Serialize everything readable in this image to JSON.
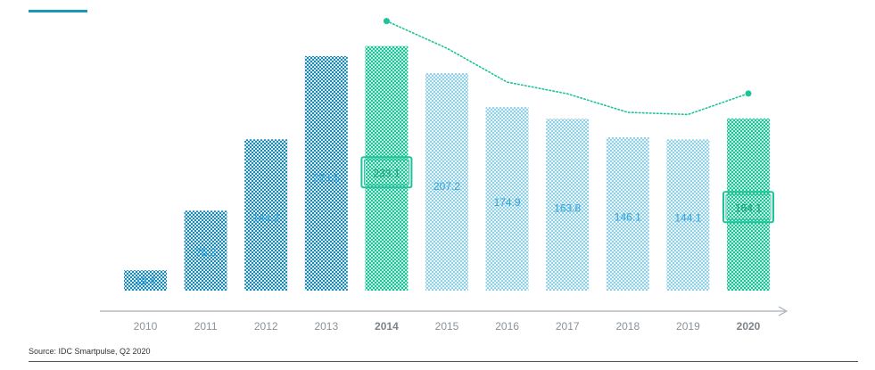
{
  "source_note": "Source: IDC Smartpulse, Q2 2020",
  "colors": {
    "dark_blue": "#1f88b5",
    "light_blue": "#7cc8e2",
    "teal": "#1ec39a",
    "axis": "#a8aeb4",
    "value_text": "#2ea3dd"
  },
  "chart_data": {
    "type": "bar",
    "title": "",
    "xlabel": "",
    "ylabel": "",
    "categories": [
      "2010",
      "2011",
      "2012",
      "2013",
      "2014",
      "2015",
      "2016",
      "2017",
      "2018",
      "2019",
      "2020"
    ],
    "values": [
      19.4,
      76.2,
      144.2,
      223.5,
      233.1,
      207.2,
      174.9,
      163.8,
      146.1,
      144.1,
      164.1
    ],
    "value_labels": [
      "19.4",
      "76.2",
      "144.2",
      "223.5",
      "233.1",
      "207.2",
      "174.9",
      "163.8",
      "146.1",
      "144.1",
      "164.1"
    ],
    "bar_styles": [
      "dark",
      "dark",
      "dark",
      "dark",
      "highlight",
      "light",
      "light",
      "light",
      "light",
      "light",
      "highlight"
    ],
    "bold_categories": [
      "2014",
      "2020"
    ],
    "highlighted_labels": [
      "2014",
      "2020"
    ],
    "trend_line": {
      "style": "dotted",
      "values": [
        233.1,
        207.2,
        174.9,
        163.8,
        146.1,
        144.1,
        164.1
      ],
      "start_category": "2014",
      "endpoints_marked": true
    },
    "ylim": [
      0,
      240
    ],
    "grid": false,
    "legend": "none"
  }
}
